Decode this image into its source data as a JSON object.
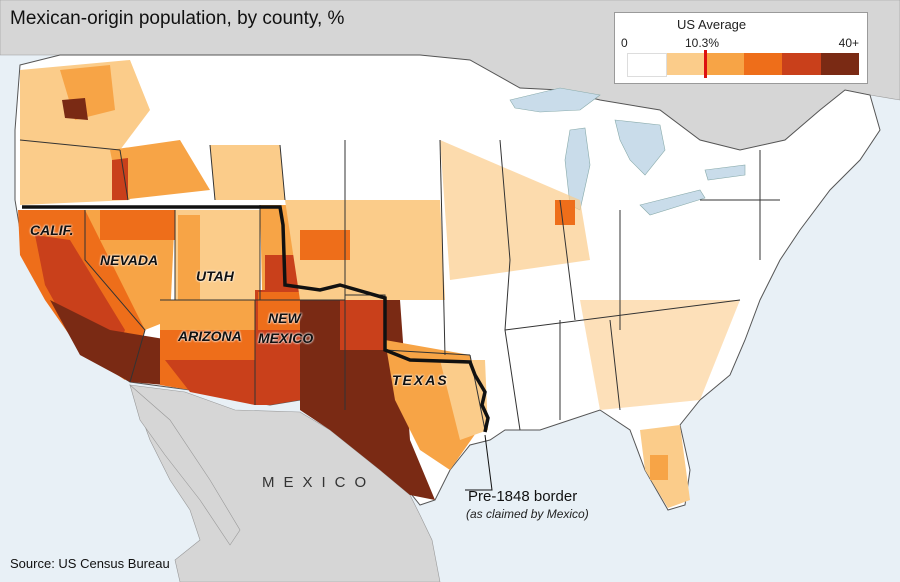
{
  "title": "Mexican-origin population, by county, %",
  "source": "Source: US Census Bureau",
  "legend": {
    "heading": "US Average",
    "min_label": "0",
    "avg_label": "10.3%",
    "max_label": "40+",
    "colors": [
      "#ffffff",
      "#fbcc8a",
      "#f7a446",
      "#ee6e1a",
      "#c9401b",
      "#7a2a14"
    ]
  },
  "regions": {
    "calif": "CALIF.",
    "nevada": "NEVADA",
    "utah": "UTAH",
    "arizona": "ARIZONA",
    "new_mexico_1": "NEW",
    "new_mexico_2": "MEXICO",
    "texas": "TEXAS",
    "mexico": "MEXICO"
  },
  "annotation": {
    "border_label": "Pre-1848 border",
    "border_sub": "(as claimed by Mexico)"
  },
  "colors": {
    "water": "#e8f0f6",
    "lakes": "#c9dcea",
    "land_foreign": "#d8d8d8",
    "land_us": "#ffffff"
  }
}
